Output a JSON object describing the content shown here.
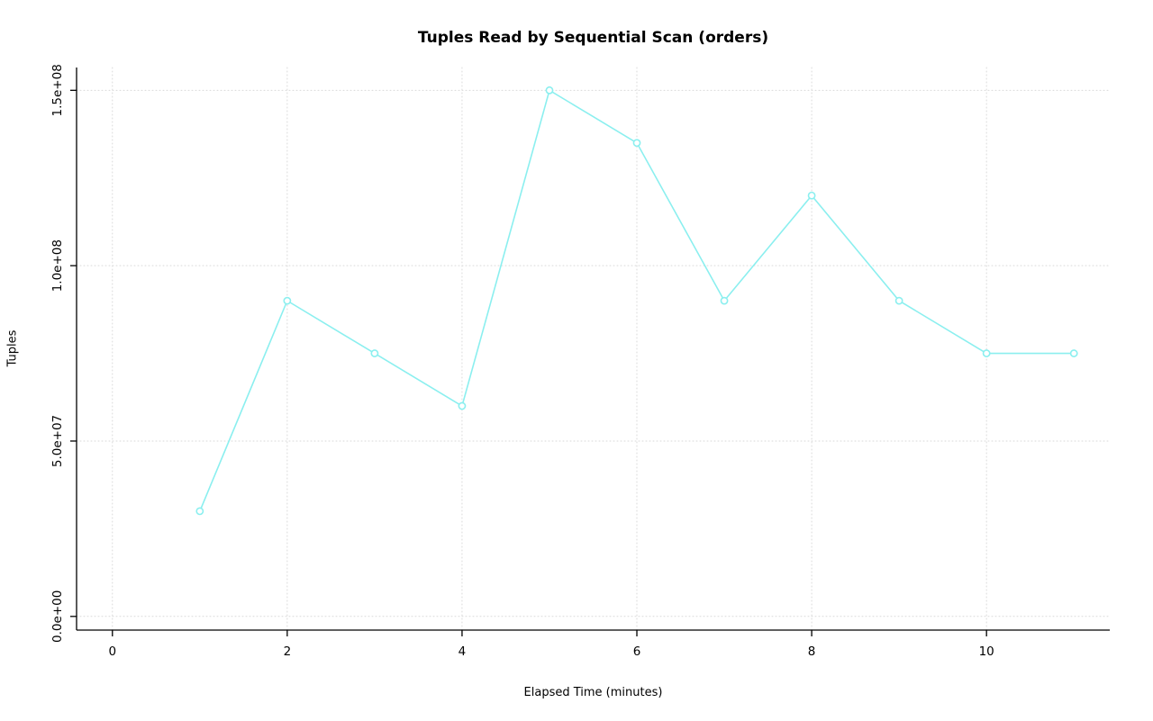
{
  "chart_data": {
    "type": "line",
    "title": "Tuples Read by Sequential Scan (orders)",
    "xlabel": "Elapsed Time (minutes)",
    "ylabel": "Tuples",
    "x": [
      1,
      2,
      3,
      4,
      5,
      6,
      7,
      8,
      9,
      10,
      11
    ],
    "values": [
      30000000,
      90000000,
      75000000,
      60000000,
      150000000,
      135000000,
      90000000,
      120000000,
      90000000,
      75000000,
      75000000
    ],
    "xlim": [
      -0.41,
      11.41
    ],
    "ylim": [
      -3900000,
      156500000
    ],
    "xticks": [
      0,
      2,
      4,
      6,
      8,
      10
    ],
    "xtick_labels": [
      "0",
      "2",
      "4",
      "6",
      "8",
      "10"
    ],
    "yticks": [
      0,
      50000000,
      100000000,
      150000000
    ],
    "ytick_labels": [
      "0.0e+00",
      "5.0e+07",
      "1.0e+08",
      "1.5e+08"
    ],
    "grid": true,
    "legend_position": "none",
    "point_style": "open-circle",
    "line_color": "#8BEFEF",
    "grid_color": "#d9d9d9",
    "axis_color": "#000000",
    "background": "#ffffff"
  }
}
